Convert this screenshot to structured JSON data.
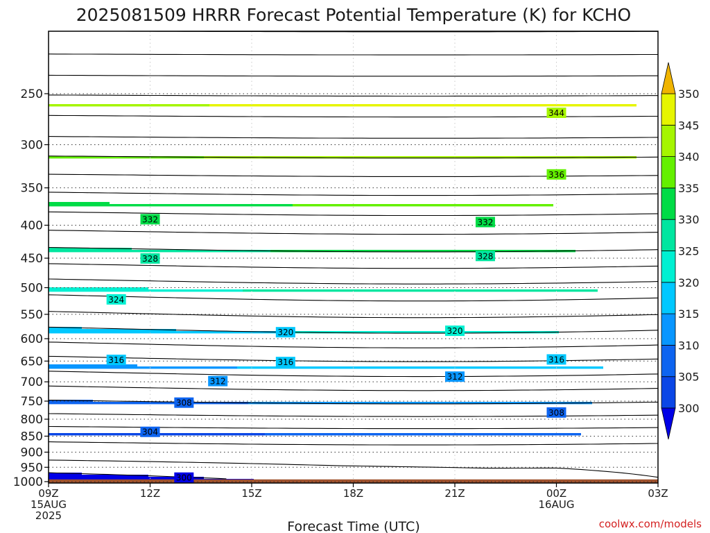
{
  "chart_data": {
    "type": "heatmap",
    "title": "2025081509 HRRR Forecast Potential Temperature (K) for KCHO",
    "xlabel": "Forecast Time (UTC)",
    "ylabel": "",
    "credit": "coolwx.com/models",
    "y_scale": "log-pressure",
    "ylim": [
      1005,
      200
    ],
    "xlim": [
      0,
      18
    ],
    "grid": true,
    "x_ticks": [
      {
        "hour": 0,
        "lines": [
          "09Z",
          "15AUG",
          "2025"
        ]
      },
      {
        "hour": 3,
        "lines": [
          "12Z"
        ]
      },
      {
        "hour": 6,
        "lines": [
          "15Z"
        ]
      },
      {
        "hour": 9,
        "lines": [
          "18Z"
        ]
      },
      {
        "hour": 12,
        "lines": [
          "21Z"
        ]
      },
      {
        "hour": 15,
        "lines": [
          "00Z",
          "16AUG"
        ]
      },
      {
        "hour": 18,
        "lines": [
          "03Z"
        ]
      }
    ],
    "y_ticks": [
      250,
      300,
      350,
      400,
      450,
      500,
      550,
      600,
      650,
      700,
      750,
      800,
      850,
      900,
      950,
      1000
    ],
    "colorbar": {
      "levels": [
        300,
        305,
        310,
        315,
        320,
        325,
        330,
        335,
        340,
        345,
        350
      ],
      "colors": [
        "#0000e6",
        "#0a46e6",
        "#0d64f0",
        "#0896ff",
        "#00c8ff",
        "#00f0d2",
        "#00e6a0",
        "#00dc46",
        "#64f000",
        "#a5f500",
        "#e6f500",
        "#ffff00",
        "#f0b400"
      ],
      "under_color": "#0000e6",
      "over_color": "#f0b400"
    },
    "surface_color": "#a0522d",
    "contour_labels": [
      {
        "value": 344,
        "hour": 15.0,
        "pressure": 268
      },
      {
        "value": 336,
        "hour": 15.0,
        "pressure": 334
      },
      {
        "value": 332,
        "hour": 3.0,
        "pressure": 392
      },
      {
        "value": 332,
        "hour": 12.9,
        "pressure": 396
      },
      {
        "value": 328,
        "hour": 3.0,
        "pressure": 451
      },
      {
        "value": 328,
        "hour": 12.9,
        "pressure": 447
      },
      {
        "value": 324,
        "hour": 2.0,
        "pressure": 522
      },
      {
        "value": 320,
        "hour": 7.0,
        "pressure": 587
      },
      {
        "value": 320,
        "hour": 12.0,
        "pressure": 584
      },
      {
        "value": 316,
        "hour": 2.0,
        "pressure": 648
      },
      {
        "value": 316,
        "hour": 7.0,
        "pressure": 653
      },
      {
        "value": 316,
        "hour": 15.0,
        "pressure": 647
      },
      {
        "value": 312,
        "hour": 5.0,
        "pressure": 699
      },
      {
        "value": 312,
        "hour": 12.0,
        "pressure": 688
      },
      {
        "value": 308,
        "hour": 4.0,
        "pressure": 755
      },
      {
        "value": 308,
        "hour": 15.0,
        "pressure": 782
      },
      {
        "value": 304,
        "hour": 3.0,
        "pressure": 838
      },
      {
        "value": 300,
        "hour": 4.0,
        "pressure": 987
      }
    ]
  }
}
